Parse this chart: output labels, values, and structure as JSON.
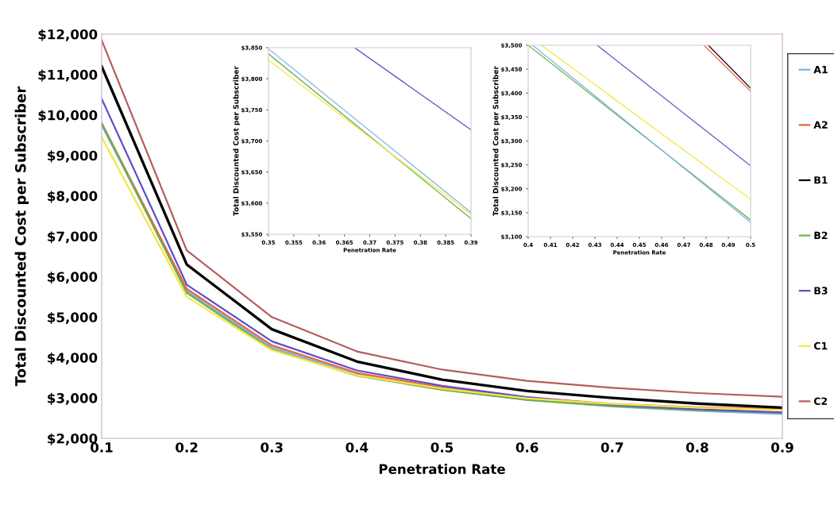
{
  "chart_data": [
    {
      "type": "line",
      "xlabel": "Penetration Rate",
      "ylabel": "Total Discounted Cost per Subscriber",
      "x": [
        0.1,
        0.2,
        0.3,
        0.4,
        0.5,
        0.6,
        0.7,
        0.8,
        0.9
      ],
      "xlim": [
        0.1,
        0.9
      ],
      "xticks": [
        0.1,
        0.2,
        0.3,
        0.4,
        0.5,
        0.6,
        0.7,
        0.8,
        0.9
      ],
      "ylim": [
        2000,
        12000
      ],
      "yticks": [
        {
          "value": 2000,
          "label": "$2,000"
        },
        {
          "value": 3000,
          "label": "$3,000"
        },
        {
          "value": 4000,
          "label": "$4,000"
        },
        {
          "value": 5000,
          "label": "$5,000"
        },
        {
          "value": 6000,
          "label": "$6,000"
        },
        {
          "value": 7000,
          "label": "$7,000"
        },
        {
          "value": 8000,
          "label": "$8,000"
        },
        {
          "value": 9000,
          "label": "$9,000"
        },
        {
          "value": 10000,
          "label": "$10,000"
        },
        {
          "value": 11000,
          "label": "$11,000"
        },
        {
          "value": 12000,
          "label": "$12,000"
        }
      ],
      "legend": "right",
      "grid": false,
      "marker": "none",
      "line_style": "solid",
      "series": [
        {
          "name": "A1",
          "color": "#7fb2e5",
          "values": [
            9750,
            5650,
            4250,
            3580,
            3210,
            2950,
            2790,
            2680,
            2600
          ]
        },
        {
          "name": "A2",
          "color": "#f2603d",
          "values": [
            9800,
            5700,
            4300,
            3620,
            3260,
            3010,
            2850,
            2770,
            2720
          ]
        },
        {
          "name": "B1",
          "color": "#000000",
          "values": [
            11200,
            6300,
            4700,
            3900,
            3450,
            3170,
            3000,
            2860,
            2760
          ]
        },
        {
          "name": "B2",
          "color": "#6ab04c",
          "values": [
            9800,
            5600,
            4200,
            3550,
            3200,
            2950,
            2800,
            2700,
            2630
          ]
        },
        {
          "name": "B3",
          "color": "#5b4fc9",
          "values": [
            10400,
            5800,
            4400,
            3680,
            3300,
            3020,
            2830,
            2720,
            2640
          ]
        },
        {
          "name": "C1",
          "color": "#f5e642",
          "values": [
            9450,
            5500,
            4180,
            3560,
            3230,
            2990,
            2850,
            2760,
            2700
          ]
        },
        {
          "name": "C2",
          "color": "#b85c5c",
          "values": [
            11850,
            6650,
            5000,
            4150,
            3700,
            3420,
            3250,
            3120,
            3030
          ]
        }
      ]
    },
    {
      "type": "line",
      "xlabel": "Penetration Rate",
      "ylabel": "Total Discounted Cost per Subscriber",
      "xlim": [
        0.35,
        0.39
      ],
      "xticks": [
        0.35,
        0.355,
        0.36,
        0.365,
        0.37,
        0.375,
        0.38,
        0.385,
        0.39
      ],
      "ylim": [
        3550,
        3850
      ],
      "yticks": [
        {
          "value": 3550,
          "label": "$3,550"
        },
        {
          "value": 3600,
          "label": "$3,600"
        },
        {
          "value": 3650,
          "label": "$3,650"
        },
        {
          "value": 3700,
          "label": "$3,700"
        },
        {
          "value": 3750,
          "label": "$3,750"
        },
        {
          "value": 3800,
          "label": "$3,800"
        },
        {
          "value": 3850,
          "label": "$3,850"
        }
      ],
      "grid": false,
      "marker": "none",
      "line_style": "solid",
      "series": [
        {
          "color": "#7fb2e5",
          "x": [
            0.35,
            0.39
          ],
          "values": [
            3848,
            3585
          ]
        },
        {
          "color": "#6ab04c",
          "x": [
            0.35,
            0.39
          ],
          "values": [
            3840,
            3575
          ]
        },
        {
          "color": "#f5e642",
          "x": [
            0.35,
            0.39
          ],
          "values": [
            3830,
            3582
          ]
        },
        {
          "color": "#5b4fc9",
          "x": [
            0.367,
            0.39
          ],
          "values": [
            3850,
            3718
          ]
        }
      ]
    },
    {
      "type": "line",
      "xlabel": "Penetration Rate",
      "ylabel": "Total Discounted Cost per Subscriber",
      "xlim": [
        0.4,
        0.5
      ],
      "xticks": [
        0.4,
        0.41,
        0.42,
        0.43,
        0.44,
        0.45,
        0.46,
        0.47,
        0.48,
        0.49,
        0.5
      ],
      "ylim": [
        3100,
        3500
      ],
      "yticks": [
        {
          "value": 3100,
          "label": "$3,100"
        },
        {
          "value": 3150,
          "label": "$3,150"
        },
        {
          "value": 3200,
          "label": "$3,200"
        },
        {
          "value": 3250,
          "label": "$3,250"
        },
        {
          "value": 3300,
          "label": "$3,300"
        },
        {
          "value": 3350,
          "label": "$3,350"
        },
        {
          "value": 3400,
          "label": "$3,400"
        },
        {
          "value": 3450,
          "label": "$3,450"
        },
        {
          "value": 3500,
          "label": "$3,500"
        }
      ],
      "grid": false,
      "marker": "none",
      "line_style": "solid",
      "series": [
        {
          "color": "#6ab04c",
          "x": [
            0.4,
            0.5
          ],
          "values": [
            3500,
            3135
          ]
        },
        {
          "color": "#7fb2e5",
          "x": [
            0.402,
            0.5
          ],
          "values": [
            3500,
            3130
          ]
        },
        {
          "color": "#f5e642",
          "x": [
            0.406,
            0.5
          ],
          "values": [
            3500,
            3178
          ]
        },
        {
          "color": "#5b4fc9",
          "x": [
            0.431,
            0.5
          ],
          "values": [
            3500,
            3248
          ]
        },
        {
          "color": "#000000",
          "x": [
            0.481,
            0.5
          ],
          "values": [
            3500,
            3410
          ]
        },
        {
          "color": "#f2603d",
          "x": [
            0.479,
            0.5
          ],
          "values": [
            3500,
            3404
          ]
        }
      ]
    }
  ]
}
